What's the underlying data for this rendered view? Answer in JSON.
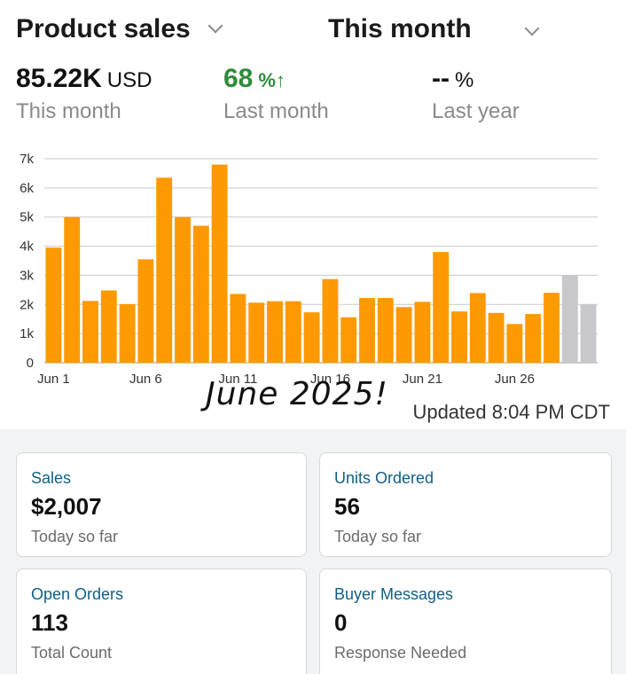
{
  "header": {
    "metric_selector": "Product sales",
    "period_selector": "This month"
  },
  "summary": {
    "this_month": {
      "value": "85.22K",
      "unit": "USD",
      "label": "This month"
    },
    "last_month": {
      "value": "68",
      "unit": "%↑",
      "label": "Last month"
    },
    "last_year": {
      "value": "--",
      "unit": "%",
      "label": "Last year"
    }
  },
  "colors": {
    "bar": "#ff9900",
    "bar_projected": "#c8c8cc",
    "positive": "#2e8b3a",
    "card_title": "#0f5f86"
  },
  "chart_data": {
    "type": "bar",
    "title": "",
    "xlabel": "",
    "ylabel": "",
    "ylim": [
      0,
      7000
    ],
    "yticks": [
      0,
      1000,
      2000,
      3000,
      4000,
      5000,
      6000,
      7000
    ],
    "ytick_labels": [
      "0",
      "1k",
      "2k",
      "3k",
      "4k",
      "5k",
      "6k",
      "7k"
    ],
    "grid": true,
    "categories": [
      "Jun 1",
      "Jun 2",
      "Jun 3",
      "Jun 4",
      "Jun 5",
      "Jun 6",
      "Jun 7",
      "Jun 8",
      "Jun 9",
      "Jun 10",
      "Jun 11",
      "Jun 12",
      "Jun 13",
      "Jun 14",
      "Jun 15",
      "Jun 16",
      "Jun 17",
      "Jun 18",
      "Jun 19",
      "Jun 20",
      "Jun 21",
      "Jun 22",
      "Jun 23",
      "Jun 24",
      "Jun 25",
      "Jun 26",
      "Jun 27",
      "Jun 28",
      "Jun 29",
      "Jun 30"
    ],
    "xtick_labels": [
      {
        "index": 0,
        "label": "Jun 1"
      },
      {
        "index": 5,
        "label": "Jun 6"
      },
      {
        "index": 10,
        "label": "Jun 11"
      },
      {
        "index": 15,
        "label": "Jun 16"
      },
      {
        "index": 20,
        "label": "Jun 21"
      },
      {
        "index": 25,
        "label": "Jun 26"
      }
    ],
    "values": [
      3950,
      5000,
      2120,
      2480,
      2010,
      3550,
      6350,
      5000,
      4700,
      6800,
      2360,
      2060,
      2110,
      2110,
      1730,
      2870,
      1560,
      2220,
      2220,
      1910,
      2090,
      3800,
      1760,
      2390,
      1710,
      1330,
      1670,
      2400,
      3000,
      2000
    ],
    "projected_from_index": 28
  },
  "annotation": "June 2025!",
  "updated_text": "Updated 8:04 PM CDT",
  "cards": {
    "sales": {
      "title": "Sales",
      "value": "$2,007",
      "sub": "Today so far"
    },
    "units": {
      "title": "Units Ordered",
      "value": "56",
      "sub": "Today so far"
    },
    "orders": {
      "title": "Open Orders",
      "value": "113",
      "sub": "Total Count"
    },
    "messages": {
      "title": "Buyer Messages",
      "value": "0",
      "sub": "Response Needed"
    }
  }
}
